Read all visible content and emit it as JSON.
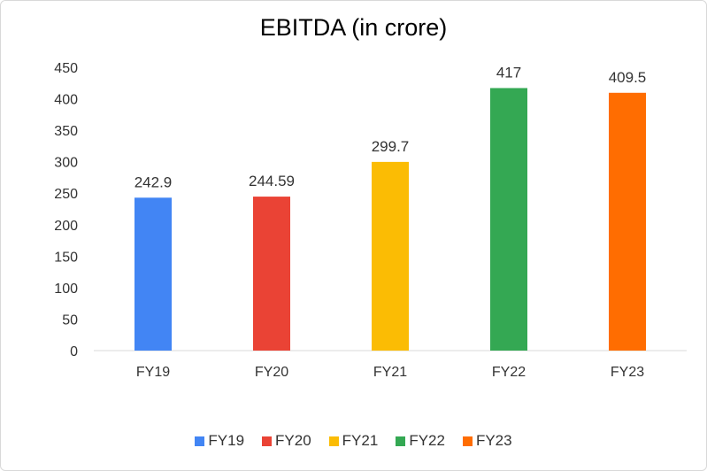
{
  "chart_data": {
    "type": "bar",
    "title": "EBITDA (in crore)",
    "xlabel": "",
    "ylabel": "",
    "categories": [
      "FY19",
      "FY20",
      "FY21",
      "FY22",
      "FY23"
    ],
    "values": [
      242.9,
      244.59,
      299.7,
      417,
      409.5
    ],
    "data_labels": [
      "242.9",
      "244.59",
      "299.7",
      "417",
      "409.5"
    ],
    "colors": [
      "#4285F4",
      "#EA4335",
      "#FBBC04",
      "#34A853",
      "#FF6D01"
    ],
    "ylim": [
      0,
      450
    ],
    "yticks": [
      0,
      50,
      100,
      150,
      200,
      250,
      300,
      350,
      400,
      450
    ],
    "grid": false,
    "legend": {
      "position": "bottom",
      "entries": [
        "FY19",
        "FY20",
        "FY21",
        "FY22",
        "FY23"
      ]
    }
  }
}
